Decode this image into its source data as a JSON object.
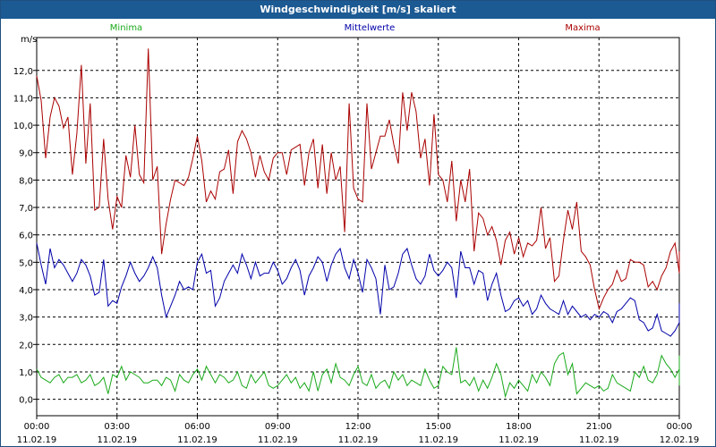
{
  "window": {
    "title": "Windgeschwindigkeit [m/s] skaliert"
  },
  "chart_data": {
    "type": "line",
    "title": "Windgeschwindigkeit [m/s] skaliert",
    "ylabel": "m/s",
    "xlabel": "",
    "grid": true,
    "legend_position": "top",
    "x_unit": "hours since first tick",
    "xlim": [
      0,
      24
    ],
    "ylim": [
      -0.6,
      13.2
    ],
    "y_ticks": [
      "0,0",
      "1,0",
      "2,0",
      "3,0",
      "4,0",
      "5,0",
      "6,0",
      "7,0",
      "8,0",
      "9,0",
      "10,0",
      "11,0",
      "12,0"
    ],
    "x_ticks": [
      {
        "time": "00:00",
        "date": "11.02.19"
      },
      {
        "time": "03:00",
        "date": "11.02.19"
      },
      {
        "time": "06:00",
        "date": "11.02.19"
      },
      {
        "time": "09:00",
        "date": "11.02.19"
      },
      {
        "time": "12:00",
        "date": "11.02.19"
      },
      {
        "time": "15:00",
        "date": "11.02.19"
      },
      {
        "time": "18:00",
        "date": "11.02.19"
      },
      {
        "time": "21:00",
        "date": "11.02.19"
      },
      {
        "time": "00:00",
        "date": "12.02.19"
      }
    ],
    "x_step_hours": 0.1667,
    "series": [
      {
        "name": "Minima",
        "color": "#1aaa1a",
        "values": [
          1.1,
          0.8,
          0.7,
          0.6,
          0.8,
          0.9,
          0.6,
          0.8,
          0.8,
          0.9,
          0.6,
          0.7,
          0.9,
          0.5,
          0.6,
          0.8,
          0.2,
          0.9,
          0.8,
          1.2,
          0.7,
          1.0,
          0.9,
          0.8,
          0.6,
          0.6,
          0.7,
          0.7,
          0.5,
          0.8,
          0.7,
          0.3,
          0.9,
          0.7,
          0.6,
          0.9,
          1.1,
          0.7,
          1.2,
          0.9,
          0.6,
          0.9,
          0.8,
          0.6,
          0.7,
          1.0,
          0.5,
          0.4,
          0.9,
          0.6,
          0.8,
          1.0,
          0.5,
          0.4,
          0.5,
          0.7,
          0.9,
          0.6,
          0.8,
          0.4,
          0.6,
          0.3,
          1.0,
          0.3,
          0.9,
          1.1,
          0.6,
          1.3,
          0.8,
          0.7,
          0.5,
          0.9,
          1.2,
          0.6,
          0.5,
          0.9,
          0.4,
          0.6,
          0.7,
          0.4,
          1.0,
          0.7,
          0.9,
          0.5,
          0.7,
          0.6,
          0.5,
          1.1,
          0.7,
          0.4,
          0.5,
          1.2,
          1.0,
          0.9,
          1.9,
          0.6,
          0.7,
          0.5,
          0.8,
          0.3,
          0.7,
          0.4,
          0.8,
          1.3,
          0.9,
          0.1,
          0.6,
          0.4,
          0.7,
          0.5,
          0.3,
          0.9,
          0.6,
          1.0,
          0.8,
          0.5,
          1.3,
          1.6,
          1.7,
          0.9,
          1.3,
          0.2,
          0.4,
          0.6,
          0.5,
          0.4,
          0.5,
          0.3,
          0.4,
          0.9,
          0.6,
          0.5,
          0.4,
          0.3,
          1.0,
          0.8,
          1.2,
          0.7,
          0.6,
          0.9,
          1.6,
          1.3,
          1.1,
          0.8,
          1.1,
          1.6,
          0.9,
          1.5,
          1.2,
          1.0,
          0.7,
          1.2,
          0.5
        ]
      },
      {
        "name": "Mittelwerte",
        "color": "#0000aa",
        "values": [
          5.7,
          4.9,
          4.2,
          5.5,
          4.8,
          5.1,
          4.9,
          4.6,
          4.3,
          4.6,
          5.1,
          4.9,
          4.5,
          3.8,
          3.9,
          5.1,
          3.4,
          3.6,
          3.5,
          4.1,
          4.5,
          5.0,
          4.6,
          4.3,
          4.5,
          4.8,
          5.2,
          4.8,
          3.8,
          3.0,
          3.4,
          3.8,
          4.3,
          4.0,
          4.1,
          4.0,
          5.0,
          5.3,
          4.6,
          4.7,
          3.4,
          3.7,
          4.3,
          4.6,
          4.9,
          4.6,
          5.3,
          4.9,
          4.4,
          5.0,
          4.5,
          4.6,
          4.6,
          5.0,
          4.7,
          4.2,
          4.4,
          4.8,
          5.1,
          4.7,
          3.8,
          4.5,
          4.8,
          5.2,
          5.0,
          4.3,
          4.9,
          5.3,
          5.5,
          4.8,
          4.4,
          5.1,
          4.6,
          3.9,
          5.1,
          4.8,
          4.4,
          3.1,
          4.9,
          4.0,
          4.1,
          4.6,
          5.3,
          5.5,
          4.9,
          4.4,
          4.2,
          4.5,
          5.3,
          4.7,
          4.5,
          4.7,
          5.0,
          4.8,
          3.7,
          5.4,
          4.8,
          4.8,
          4.2,
          4.7,
          4.6,
          3.6,
          4.2,
          4.6,
          3.8,
          3.2,
          3.3,
          3.6,
          3.7,
          3.4,
          3.6,
          3.1,
          3.3,
          3.8,
          3.5,
          3.3,
          3.2,
          3.1,
          3.6,
          3.1,
          3.4,
          3.2,
          3.0,
          3.1,
          2.9,
          3.1,
          3.0,
          3.2,
          3.1,
          2.8,
          3.2,
          3.3,
          3.5,
          3.7,
          3.6,
          2.9,
          2.8,
          2.5,
          2.6,
          3.1,
          2.5,
          2.4,
          2.3,
          2.5,
          2.8,
          3.0,
          2.9,
          3.0,
          2.8,
          3.0,
          2.9,
          3.1,
          3.3,
          3.2,
          3.2,
          3.5,
          3.3,
          3.3,
          3.2
        ]
      },
      {
        "name": "Maxima",
        "color": "#aa0000",
        "values": [
          11.8,
          10.9,
          8.8,
          10.3,
          11.0,
          10.7,
          9.9,
          10.3,
          8.2,
          9.7,
          12.2,
          8.6,
          10.8,
          6.9,
          7.0,
          9.5,
          7.3,
          6.2,
          7.4,
          7.0,
          8.9,
          8.1,
          10.0,
          8.2,
          7.9,
          12.8,
          8.0,
          8.5,
          5.3,
          6.4,
          7.3,
          8.0,
          7.9,
          7.8,
          8.1,
          8.8,
          9.6,
          8.7,
          7.2,
          7.6,
          7.3,
          8.3,
          8.4,
          9.1,
          7.5,
          9.4,
          9.8,
          9.5,
          9.0,
          8.1,
          8.9,
          8.3,
          8.0,
          8.8,
          9.0,
          9.0,
          8.2,
          9.1,
          9.2,
          9.3,
          7.8,
          9.0,
          9.5,
          7.7,
          9.3,
          7.5,
          9.0,
          8.0,
          8.5,
          6.1,
          10.8,
          7.7,
          7.3,
          7.2,
          10.8,
          8.4,
          9.0,
          9.6,
          9.6,
          10.2,
          9.3,
          8.6,
          11.2,
          9.8,
          11.2,
          10.5,
          8.8,
          9.5,
          7.8,
          10.4,
          8.2,
          8.0,
          7.2,
          8.7,
          6.5,
          8.0,
          7.2,
          8.4,
          5.4,
          6.8,
          6.6,
          6.0,
          6.3,
          5.8,
          4.9,
          5.8,
          6.1,
          5.3,
          5.9,
          5.2,
          5.7,
          5.6,
          5.8,
          7.0,
          5.5,
          5.9,
          4.3,
          4.5,
          5.8,
          6.9,
          6.2,
          7.2,
          5.4,
          5.2,
          4.9,
          4.0,
          3.3,
          3.7,
          4.0,
          4.2,
          4.7,
          4.3,
          4.4,
          5.1,
          5.0,
          5.0,
          4.9,
          4.1,
          4.3,
          4.0,
          4.5,
          4.8,
          5.4,
          5.7,
          4.6,
          5.0,
          5.4
        ]
      }
    ]
  }
}
